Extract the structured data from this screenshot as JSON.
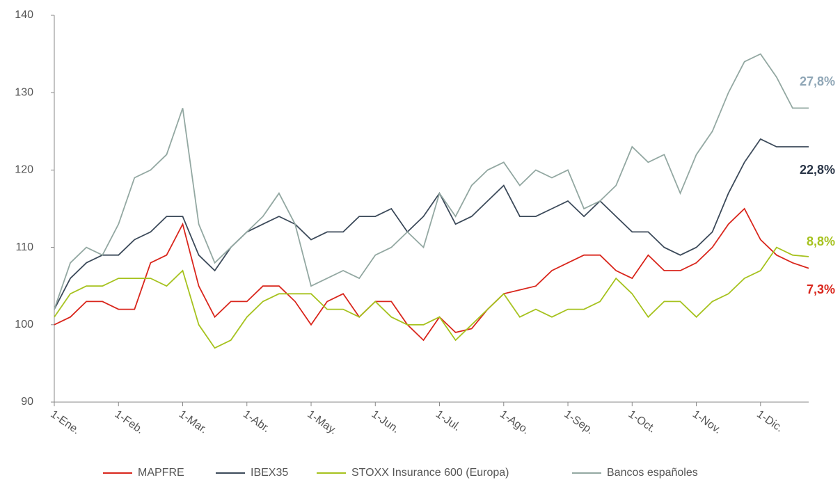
{
  "chart_data": {
    "type": "line",
    "categories": [
      "1-Ene.",
      null,
      null,
      null,
      "1-Feb.",
      null,
      null,
      null,
      "1-Mar.",
      null,
      null,
      null,
      "1-Abr.",
      null,
      null,
      null,
      "1-May.",
      null,
      null,
      null,
      "1-Jun.",
      null,
      null,
      null,
      "1-Jul.",
      null,
      null,
      null,
      "1-Ago.",
      null,
      null,
      null,
      "1-Sep.",
      null,
      null,
      null,
      "1-Oct.",
      null,
      null,
      null,
      "1-Nov.",
      null,
      null,
      null,
      "1-Dic.",
      null,
      null,
      null
    ],
    "ylim": [
      90,
      140
    ],
    "yticks": [
      90,
      100,
      110,
      120,
      130,
      140
    ],
    "legend": "bottom",
    "series": [
      {
        "name": "MAPFRE",
        "color": "#d9261c",
        "end_label": "7,3%",
        "end_label_color": "#d9261c",
        "values": [
          100,
          101,
          103,
          103,
          102,
          102,
          108,
          109,
          113,
          105,
          101,
          103,
          103,
          105,
          105,
          103,
          100,
          103,
          104,
          101,
          103,
          103,
          100,
          98,
          101,
          99,
          99.5,
          102,
          104,
          104.5,
          105,
          107,
          108,
          109,
          109,
          107,
          106,
          109,
          107,
          107,
          108,
          110,
          113,
          115,
          111,
          109,
          108,
          107.3
        ]
      },
      {
        "name": "IBEX35",
        "color": "#3c4a5a",
        "end_label": "22,8%",
        "end_label_color": "#2a3547",
        "values": [
          102,
          106,
          108,
          109,
          109,
          111,
          112,
          114,
          114,
          109,
          107,
          110,
          112,
          113,
          114,
          113,
          111,
          112,
          112,
          114,
          114,
          115,
          112,
          114,
          117,
          113,
          114,
          116,
          118,
          114,
          114,
          115,
          116,
          114,
          116,
          114,
          112,
          112,
          110,
          109,
          110,
          112,
          117,
          121,
          124,
          123,
          123,
          123
        ]
      },
      {
        "name": "STOXX Insurance 600 (Europa)",
        "color": "#a6c21e",
        "end_label": "8,8%",
        "end_label_color": "#a6c21e",
        "values": [
          101,
          104,
          105,
          105,
          106,
          106,
          106,
          105,
          107,
          100,
          97,
          98,
          101,
          103,
          104,
          104,
          104,
          102,
          102,
          101,
          103,
          101,
          100,
          100,
          101,
          98,
          100,
          102,
          104,
          101,
          102,
          101,
          102,
          102,
          103,
          106,
          104,
          101,
          103,
          103,
          101,
          103,
          104,
          106,
          107,
          110,
          109,
          108.8
        ]
      },
      {
        "name": "Bancos españoles",
        "color": "#93a8a2",
        "end_label": "27,8%",
        "end_label_color": "#8fa6b6",
        "values": [
          102,
          108,
          110,
          109,
          113,
          119,
          120,
          122,
          128,
          113,
          108,
          110,
          112,
          114,
          117,
          113,
          105,
          106,
          107,
          106,
          109,
          110,
          112,
          110,
          117,
          114,
          118,
          120,
          121,
          118,
          120,
          119,
          120,
          115,
          116,
          118,
          123,
          121,
          122,
          117,
          122,
          125,
          130,
          134,
          135,
          132,
          128,
          128
        ]
      }
    ]
  }
}
